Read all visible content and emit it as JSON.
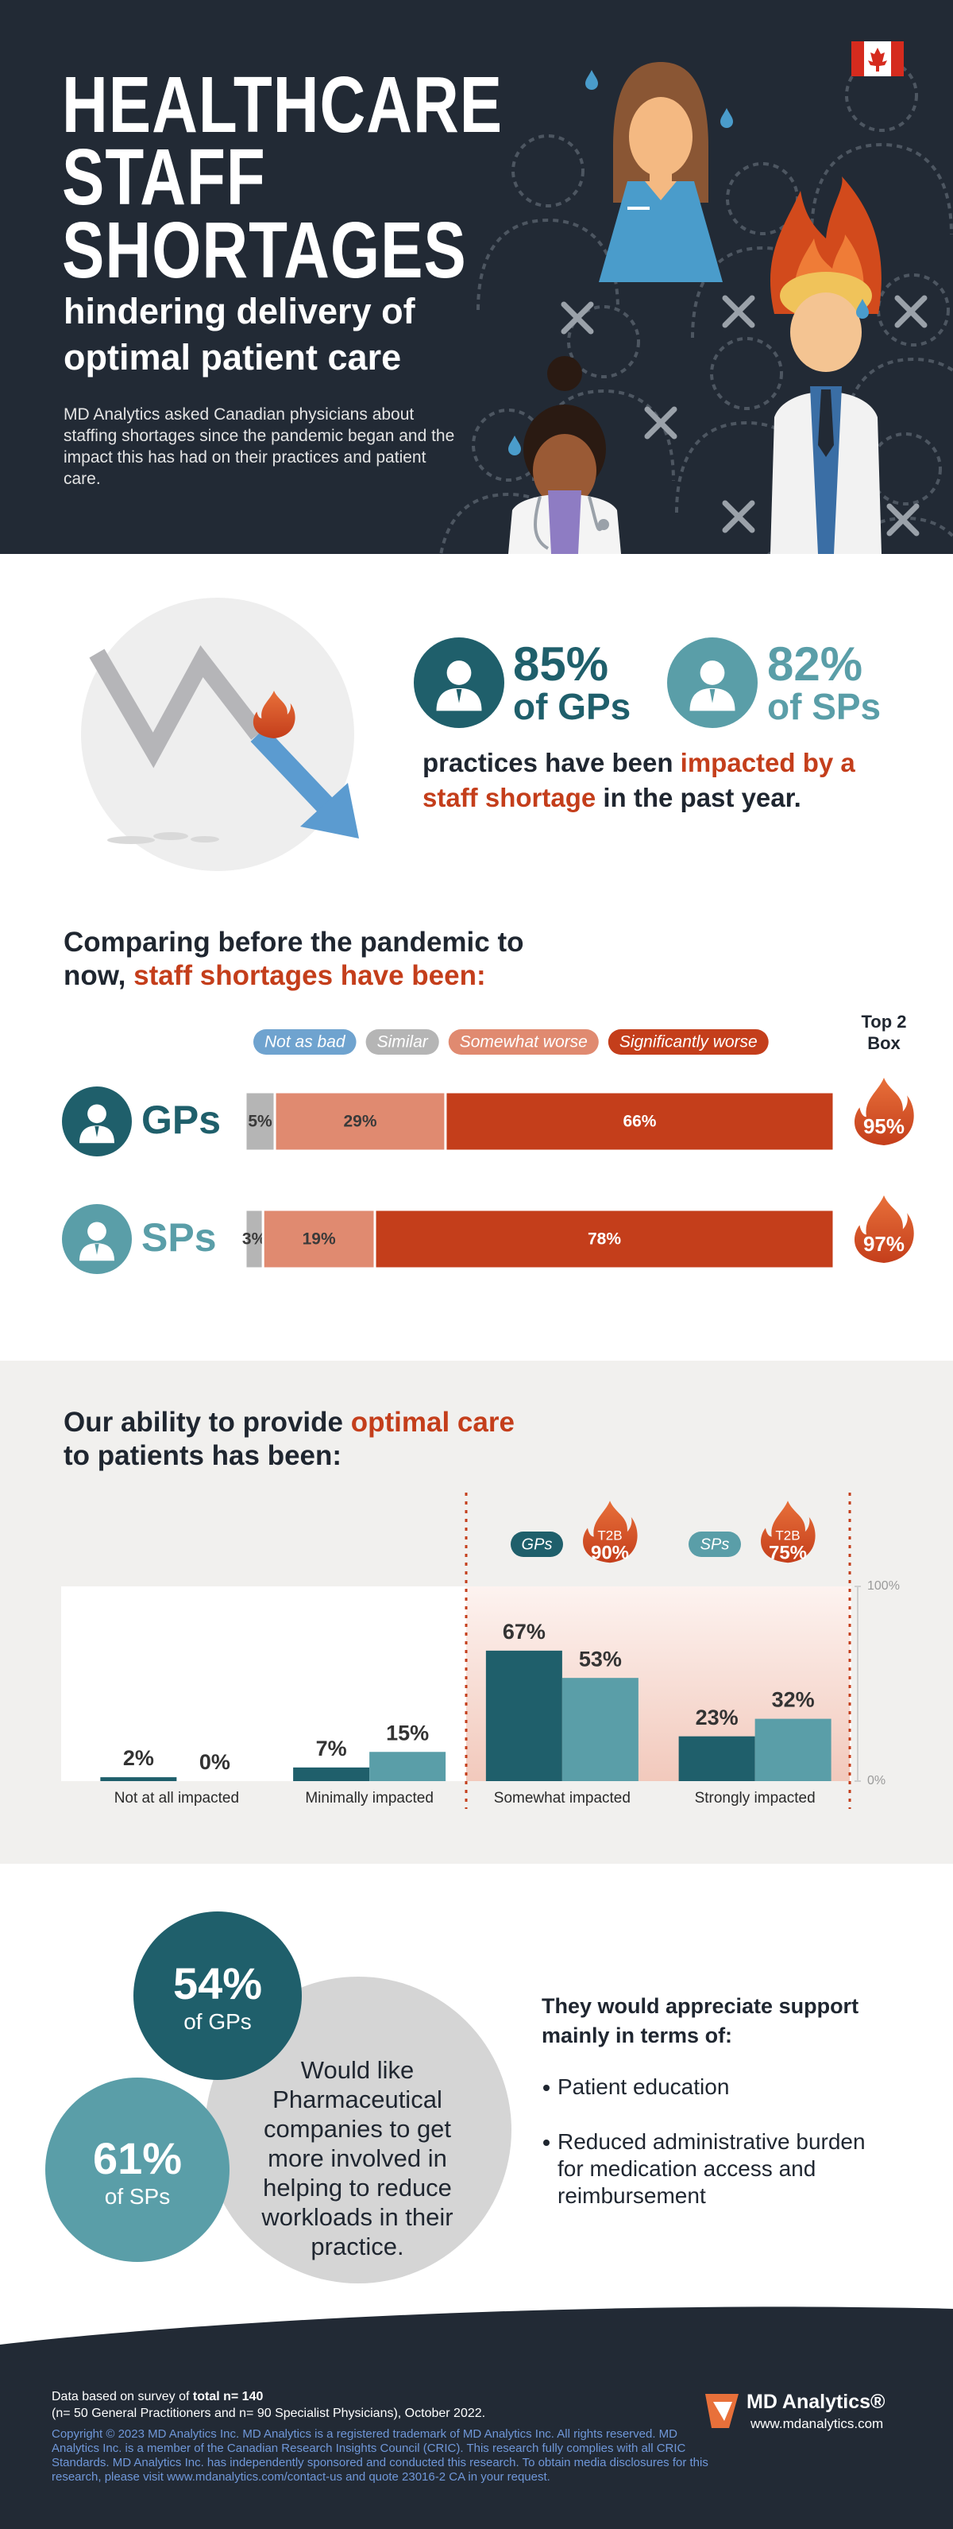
{
  "header": {
    "title": [
      "HEALTHCARE",
      "STAFF",
      "SHORTAGES"
    ],
    "subtitle": [
      "hindering delivery of",
      "optimal patient care"
    ],
    "description": "MD Analytics asked Canadian physicians about staffing shortages since the pandemic began and the impact this has had on their practices and patient care."
  },
  "impact": {
    "stats": [
      {
        "value": "85%",
        "group": "of GPs"
      },
      {
        "value": "82%",
        "group": "of SPs"
      }
    ],
    "statement": [
      "practices have been ",
      "impacted by a staff shortage",
      " in the past year."
    ]
  },
  "chart_data": [
    {
      "type": "bar",
      "orientation": "horizontal",
      "stacked": true,
      "title": [
        "Comparing before the pandemic to now, ",
        "staff shortages have been:"
      ],
      "categories": [
        "GPs",
        "SPs"
      ],
      "category_colors": [
        "#1f5f6b",
        "#5a9ea8"
      ],
      "series": [
        {
          "name": "Not as bad",
          "color": "#6fa3cf",
          "values": [
            0,
            0
          ]
        },
        {
          "name": "Similar",
          "color": "#b5b5b5",
          "values": [
            5,
            3
          ],
          "value_labels": [
            "5%",
            "3%"
          ]
        },
        {
          "name": "Somewhat worse",
          "color": "#e08a70",
          "values": [
            29,
            19
          ],
          "value_labels": [
            "29%",
            "19%"
          ]
        },
        {
          "name": "Significantly worse",
          "color": "#c43e1b",
          "values": [
            66,
            78
          ],
          "value_labels": [
            "66%",
            "78%"
          ]
        }
      ],
      "xlim": [
        0,
        100
      ],
      "top2": {
        "title": "Top 2 Box",
        "values": [
          95,
          97
        ],
        "value_labels": [
          "95%",
          "97%"
        ]
      }
    },
    {
      "type": "bar",
      "title": [
        "Our ability to provide ",
        "optimal care",
        "to patients has been:"
      ],
      "categories": [
        "Not at all impacted",
        "Minimally impacted",
        "Somewhat impacted",
        "Strongly impacted"
      ],
      "series": [
        {
          "name": "GPs",
          "color": "#1f5f6b",
          "values": [
            2,
            7,
            67,
            23
          ],
          "value_labels": [
            "2%",
            "7%",
            "67%",
            "23%"
          ]
        },
        {
          "name": "SPs",
          "color": "#5a9ea8",
          "values": [
            0,
            15,
            53,
            32
          ],
          "value_labels": [
            "0%",
            "15%",
            "53%",
            "32%"
          ]
        }
      ],
      "ylim": [
        0,
        100
      ],
      "yticks": [
        {
          "value": 0,
          "label": "0%"
        },
        {
          "value": 100,
          "label": "100%"
        }
      ],
      "t2b": {
        "label": "T2B",
        "values": [
          90,
          75
        ],
        "value_labels": [
          "90%",
          "75%"
        ]
      }
    }
  ],
  "support": {
    "stats": [
      {
        "value": "54%",
        "group": "of GPs"
      },
      {
        "value": "61%",
        "group": "of SPs"
      }
    ],
    "statement": "Would like Pharmaceutical companies to get more involved in helping to reduce workloads in their practice.",
    "heading": "They would appreciate support mainly in terms of:",
    "items": [
      "Patient education",
      "Reduced administrative burden for medication access and reimbursement"
    ]
  },
  "footer": {
    "survey": [
      "Data based on survey of ",
      "total n= 140"
    ],
    "sample": "(n= 50 General Practitioners and n= 90 Specialist Physicians), October 2022.",
    "copyright": "Copyright © 2023 MD Analytics Inc. MD Analytics is a registered trademark of MD Analytics Inc. All rights reserved. MD Analytics Inc. is a member of the Canadian Research Insights Council (CRIC). This research fully complies with all CRIC Standards. MD Analytics Inc. has independently sponsored and conducted this research. To obtain media disclosures for this research, please visit www.mdanalytics.com/contact-us and quote 23016-2 CA in your request.",
    "brand": "MD Analytics®",
    "website": "www.mdanalytics.com"
  }
}
